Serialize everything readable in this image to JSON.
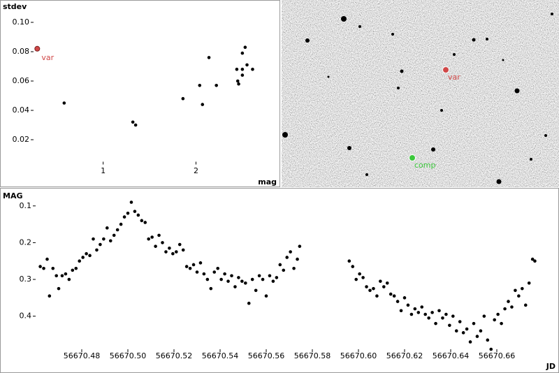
{
  "chart_data": [
    {
      "type": "scatter",
      "ylabel": "stdev",
      "xlabel": "mag",
      "xlim": [
        0.25,
        2.9
      ],
      "ylim": [
        0.005,
        0.113
      ],
      "xticks": [
        1,
        2
      ],
      "yticks": [
        {
          "value": 0.1,
          "label": "0.10"
        },
        0.08,
        0.06,
        0.04,
        0.02
      ],
      "y_inverted": false,
      "series": [
        {
          "name": "var",
          "color": "#d04848",
          "x": [
            0.29
          ],
          "values": [
            0.082
          ]
        },
        {
          "color": "#000000",
          "x": [
            0.58,
            1.32,
            1.35,
            1.86,
            2.04,
            2.07,
            2.14,
            2.22,
            2.44,
            2.45,
            2.46,
            2.5,
            2.5,
            2.5,
            2.53,
            2.55,
            2.61
          ],
          "values": [
            0.045,
            0.032,
            0.03,
            0.048,
            0.057,
            0.044,
            0.076,
            0.057,
            0.068,
            0.06,
            0.058,
            0.079,
            0.068,
            0.064,
            0.083,
            0.071,
            0.068
          ]
        }
      ]
    },
    {
      "type": "scatter",
      "ylabel": "MAG",
      "xlabel": "JD",
      "xlim": [
        56670.46,
        56670.682
      ],
      "ylim": [
        0.07,
        0.49
      ],
      "y_inverted": true,
      "xticks": [
        56670.48,
        {
          "value": 56670.5,
          "label": "56670.50"
        },
        56670.52,
        56670.54,
        56670.56,
        56670.58,
        {
          "value": 56670.6,
          "label": "56670.60"
        },
        56670.62,
        56670.64,
        56670.66
      ],
      "yticks": [
        0.1,
        0.2,
        0.3,
        0.4
      ],
      "series": [
        {
          "color": "#000000",
          "x": [
            56670.462,
            56670.4635,
            56670.465,
            56670.466,
            56670.4675,
            56670.469,
            56670.47,
            56670.4715,
            56670.473,
            56670.4745,
            56670.476,
            56670.4775,
            56670.479,
            56670.4805,
            56670.482,
            56670.4835,
            56670.485,
            56670.4865,
            56670.488,
            56670.4895,
            56670.491,
            56670.4925,
            56670.494,
            56670.4955,
            56670.497,
            56670.4985,
            56670.5,
            56670.5015,
            56670.503,
            56670.5045,
            56670.506,
            56670.5075,
            56670.509,
            56670.5105,
            56670.512,
            56670.5135,
            56670.515,
            56670.5165,
            56670.518,
            56670.5195,
            56670.521,
            56670.5225,
            56670.524,
            56670.5255,
            56670.527,
            56670.5285,
            56670.53,
            56670.5315,
            56670.533,
            56670.5345,
            56670.536,
            56670.5375,
            56670.539,
            56670.5405,
            56670.542,
            56670.5435,
            56670.545,
            56670.5465,
            56670.548,
            56670.5495,
            56670.551,
            56670.5525,
            56670.554,
            56670.5555,
            56670.557,
            56670.5585,
            56670.56,
            56670.5615,
            56670.563,
            56670.5645,
            56670.566,
            56670.5675,
            56670.569,
            56670.5705,
            56670.572,
            56670.5735,
            56670.5745,
            56670.596,
            56670.5975,
            56670.599,
            56670.6005,
            56670.602,
            56670.6035,
            56670.605,
            56670.6065,
            56670.608,
            56670.6095,
            56670.611,
            56670.6125,
            56670.614,
            56670.6155,
            56670.617,
            56670.6185,
            56670.62,
            56670.6215,
            56670.623,
            56670.6245,
            56670.626,
            56670.6275,
            56670.629,
            56670.6305,
            56670.632,
            56670.6335,
            56670.635,
            56670.6365,
            56670.638,
            56670.6395,
            56670.641,
            56670.6425,
            56670.644,
            56670.6455,
            56670.647,
            56670.6485,
            56670.65,
            56670.6515,
            56670.653,
            56670.6545,
            56670.656,
            56670.6575,
            56670.659,
            56670.6605,
            56670.662,
            56670.6635,
            56670.665,
            56670.6665,
            56670.668,
            56670.6695,
            56670.671,
            56670.6725,
            56670.674,
            56670.6755,
            56670.6765
          ],
          "values": [
            0.265,
            0.27,
            0.245,
            0.345,
            0.27,
            0.29,
            0.325,
            0.29,
            0.285,
            0.3,
            0.275,
            0.27,
            0.25,
            0.24,
            0.23,
            0.235,
            0.19,
            0.22,
            0.205,
            0.19,
            0.16,
            0.195,
            0.18,
            0.165,
            0.15,
            0.13,
            0.12,
            0.09,
            0.115,
            0.125,
            0.14,
            0.145,
            0.19,
            0.185,
            0.21,
            0.18,
            0.2,
            0.225,
            0.215,
            0.23,
            0.225,
            0.205,
            0.22,
            0.265,
            0.27,
            0.26,
            0.28,
            0.255,
            0.285,
            0.3,
            0.325,
            0.28,
            0.27,
            0.3,
            0.285,
            0.305,
            0.29,
            0.32,
            0.295,
            0.305,
            0.31,
            0.365,
            0.3,
            0.33,
            0.29,
            0.3,
            0.345,
            0.29,
            0.305,
            0.295,
            0.26,
            0.275,
            0.24,
            0.225,
            0.27,
            0.245,
            0.21,
            0.25,
            0.265,
            0.3,
            0.285,
            0.295,
            0.32,
            0.33,
            0.325,
            0.345,
            0.305,
            0.32,
            0.31,
            0.34,
            0.345,
            0.36,
            0.385,
            0.35,
            0.37,
            0.395,
            0.38,
            0.39,
            0.375,
            0.395,
            0.405,
            0.39,
            0.42,
            0.385,
            0.405,
            0.395,
            0.425,
            0.4,
            0.44,
            0.415,
            0.445,
            0.435,
            0.47,
            0.42,
            0.455,
            0.44,
            0.4,
            0.465,
            0.49,
            0.41,
            0.395,
            0.42,
            0.38,
            0.36,
            0.375,
            0.33,
            0.345,
            0.325,
            0.37,
            0.31,
            0.245,
            0.25
          ]
        }
      ]
    }
  ],
  "image_panel": {
    "markers": [
      {
        "label": "var",
        "color": "#d04848"
      },
      {
        "label": "comp",
        "color": "#3cc83c"
      }
    ]
  }
}
